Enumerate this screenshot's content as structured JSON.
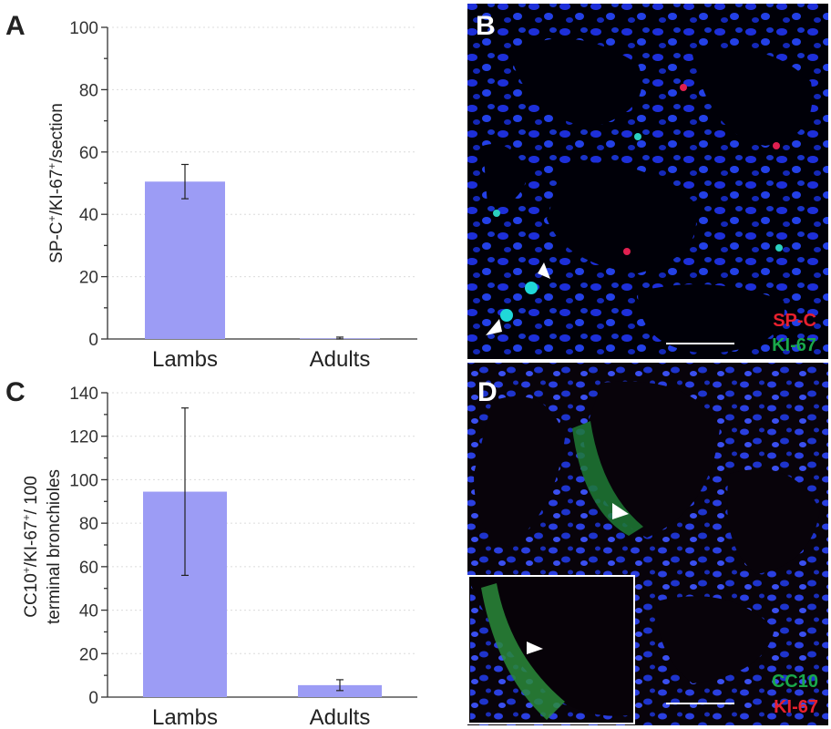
{
  "panel_labels": {
    "a": "A",
    "b": "B",
    "c": "C",
    "d": "D"
  },
  "chart_data": [
    {
      "type": "bar",
      "panel": "A",
      "categories": [
        "Lambs",
        "Adults"
      ],
      "values": [
        50.5,
        0.2
      ],
      "errors": [
        5.5,
        0.4
      ],
      "ylabel_main": "SP-C",
      "ylabel_sup1": "+",
      "ylabel_mid": "/KI-67",
      "ylabel_sup2": "+",
      "ylabel_end": "/section",
      "ylim": [
        0,
        100
      ],
      "yticks": [
        0,
        20,
        40,
        60,
        80,
        100
      ],
      "bar_color": "#9c9cf5",
      "grid": true
    },
    {
      "type": "bar",
      "panel": "C",
      "categories": [
        "Lambs",
        "Adults"
      ],
      "values": [
        94.5,
        5.5
      ],
      "errors": [
        38.5,
        2.5
      ],
      "ylabel_line1_main": "CC10",
      "ylabel_line1_sup1": "+",
      "ylabel_line1_mid": "/KI-67",
      "ylabel_line1_sup2": "+",
      "ylabel_line1_end": "/ 100",
      "ylabel_line2": "terminal  bronchioles",
      "ylim": [
        0,
        140
      ],
      "yticks": [
        0,
        20,
        40,
        60,
        80,
        100,
        120,
        140
      ],
      "bar_color": "#9c9cf5",
      "grid": true
    }
  ],
  "micrographs": {
    "b": {
      "legend1": "SP-C",
      "legend1_color": "#e8202e",
      "legend2": "KI-67",
      "legend2_color": "#1aa84a"
    },
    "d": {
      "legend1": "CC10",
      "legend1_color": "#1aa84a",
      "legend2": "KI-67",
      "legend2_color": "#e8202e"
    }
  }
}
